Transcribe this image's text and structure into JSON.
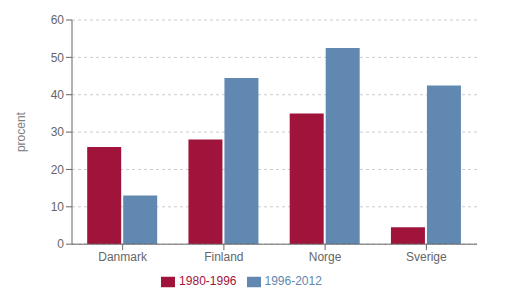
{
  "chart_data": {
    "type": "bar",
    "categories": [
      "Danmark",
      "Finland",
      "Norge",
      "Sverige"
    ],
    "series": [
      {
        "name": "1980-1996",
        "color": "#A0143C",
        "values": [
          26,
          28,
          35,
          4.5
        ]
      },
      {
        "name": "1996-2012",
        "color": "#6088B0",
        "values": [
          13,
          44.5,
          52.5,
          42.5
        ]
      }
    ],
    "ylabel": "procent",
    "ylim": [
      0,
      60
    ],
    "yticks": [
      0,
      10,
      20,
      30,
      40,
      50,
      60
    ],
    "grid": true,
    "legend": "bottom"
  }
}
